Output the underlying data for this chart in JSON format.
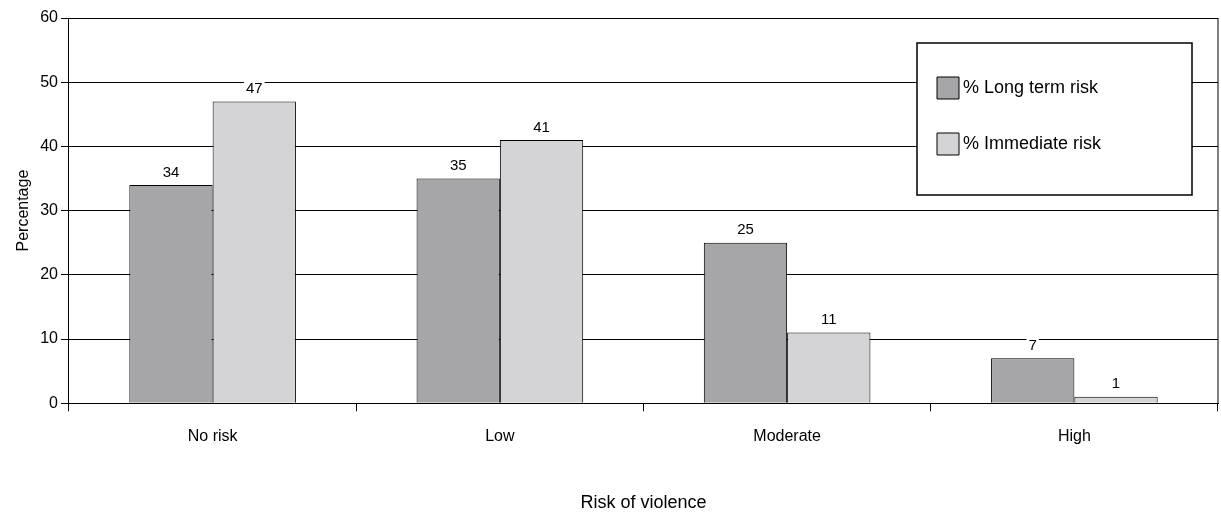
{
  "chart_data": {
    "type": "bar",
    "xlabel": "Risk of violence",
    "ylabel": "Percentage",
    "categories": [
      "No risk",
      "Low",
      "Moderate",
      "High"
    ],
    "series": [
      {
        "name": "% Long term risk",
        "color": "#a6a6a8",
        "values": [
          34,
          35,
          25,
          7
        ]
      },
      {
        "name": "% Immediate risk",
        "color": "#d4d4d6",
        "values": [
          47,
          41,
          11,
          1
        ]
      }
    ],
    "ylim": [
      0,
      60
    ],
    "yticks": [
      0,
      10,
      20,
      30,
      40,
      50,
      60
    ],
    "grid": "y",
    "legend": "top right",
    "data_labels": true
  }
}
